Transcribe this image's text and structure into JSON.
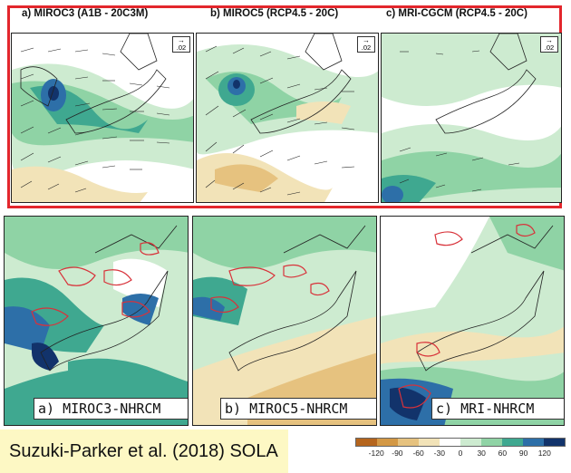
{
  "top_panels": [
    {
      "title": "a) MIROC3 (A1B - 20C3M)",
      "scale": ".02"
    },
    {
      "title": "b) MIROC5 (RCP4.5 - 20C)",
      "scale": ".02"
    },
    {
      "title": "c) MRI-CGCM (RCP4.5 - 20C)",
      "scale": ".02"
    }
  ],
  "bottom_panels": [
    {
      "label": "a) MIROC3-NHRCM"
    },
    {
      "label": "b) MIROC5-NHRCM"
    },
    {
      "label": "c) MRI-NHRCM"
    }
  ],
  "citation": "Suzuki-Parker et al. (2018) SOLA",
  "colorbar": {
    "ticks": [
      "-120",
      "-90",
      "-60",
      "-30",
      "0",
      "30",
      "60",
      "90",
      "120"
    ],
    "colors": [
      "#b5651d",
      "#d39845",
      "#e6c27f",
      "#f2e3b8",
      "#ffffff",
      "#cdebd0",
      "#8fd3a5",
      "#3fa890",
      "#2d6fa8",
      "#12336b"
    ]
  },
  "colors": {
    "frame": "#e3262c",
    "contour": "#d8323a",
    "coast": "#222222"
  }
}
